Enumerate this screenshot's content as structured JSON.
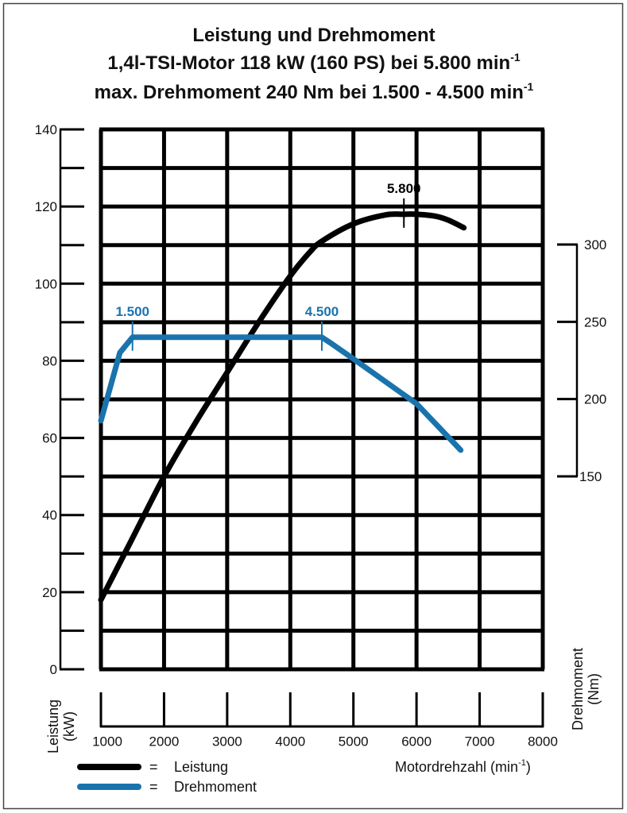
{
  "title_lines": [
    {
      "text": "Leistung und Drehmoment",
      "sup": ""
    },
    {
      "text": "1,4l-TSI-Motor 118 kW (160 PS) bei 5.800 min",
      "sup": "-1"
    },
    {
      "text": "max. Drehmoment 240 Nm bei 1.500 - 4.500 min",
      "sup": "-1"
    }
  ],
  "chart_data": {
    "type": "line",
    "x_axis": {
      "label": {
        "pre": "Motordrehzahl (min",
        "sup": "-1",
        "post": ")"
      },
      "range": [
        1000,
        8000
      ],
      "ticks": [
        1000,
        2000,
        3000,
        4000,
        5000,
        6000,
        7000,
        8000
      ],
      "tick_labels": [
        "1000",
        "2000",
        "3000",
        "4000",
        "5000",
        "6000",
        "7000",
        "8000"
      ]
    },
    "y_left": {
      "label": "Leistung",
      "unit": "(kW)",
      "range": [
        0,
        140
      ],
      "minor_step": 10,
      "ticks": [
        0,
        20,
        40,
        60,
        80,
        100,
        120,
        140
      ],
      "tick_labels": [
        "0",
        "20",
        "40",
        "60",
        "80",
        "100",
        "120",
        "140"
      ]
    },
    "y_right": {
      "label": "Drehmoment",
      "unit": "(Nm)",
      "range": [
        150,
        300
      ],
      "ticks": [
        150,
        200,
        250,
        300
      ],
      "tick_labels": [
        "150",
        "200",
        "250",
        "300"
      ]
    },
    "grid": true,
    "legend_position": "bottom-left",
    "series": [
      {
        "name": "Leistung",
        "axis": "left",
        "color": "#000000",
        "points": [
          [
            1000,
            18
          ],
          [
            1500,
            34
          ],
          [
            2000,
            50
          ],
          [
            2500,
            64
          ],
          [
            3000,
            77
          ],
          [
            3500,
            90
          ],
          [
            4000,
            102
          ],
          [
            4300,
            108
          ],
          [
            4500,
            111
          ],
          [
            5000,
            115.5
          ],
          [
            5500,
            117.8
          ],
          [
            5800,
            118
          ],
          [
            6000,
            118
          ],
          [
            6300,
            117.5
          ],
          [
            6500,
            116.5
          ],
          [
            6750,
            114.5
          ]
        ]
      },
      {
        "name": "Drehmoment",
        "axis": "right",
        "color": "#1a73ad",
        "points": [
          [
            1000,
            186
          ],
          [
            1300,
            230
          ],
          [
            1500,
            240
          ],
          [
            4500,
            240
          ],
          [
            4650,
            236
          ],
          [
            5000,
            226
          ],
          [
            6000,
            197
          ],
          [
            6700,
            167
          ]
        ]
      }
    ],
    "annotations": [
      {
        "label": "5.800",
        "x": 5800,
        "series": "Leistung",
        "color": "#000000"
      },
      {
        "label": "1.500",
        "x": 1500,
        "series": "Drehmoment",
        "color": "#1a73ad"
      },
      {
        "label": "4.500",
        "x": 4500,
        "series": "Drehmoment",
        "color": "#1a73ad"
      }
    ],
    "legend": [
      {
        "symbol": "=",
        "label": "Leistung",
        "color": "#000000"
      },
      {
        "symbol": "=",
        "label": "Drehmoment",
        "color": "#1a73ad"
      }
    ]
  }
}
